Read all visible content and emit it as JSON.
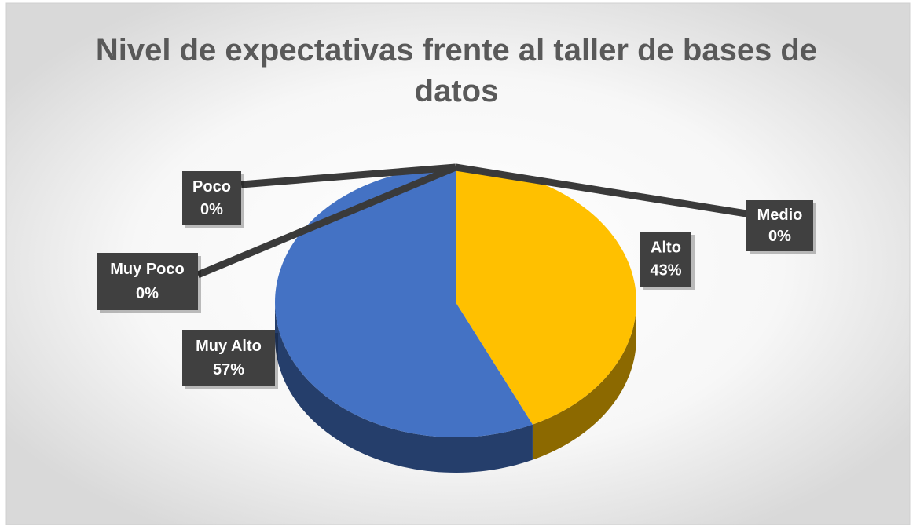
{
  "chart_data": {
    "type": "pie",
    "title": "Nivel de expectativas frente al taller de bases de datos",
    "categories": [
      "Muy Poco",
      "Poco",
      "Medio",
      "Alto",
      "Muy Alto"
    ],
    "values": [
      0,
      0,
      0,
      43,
      57
    ],
    "value_labels": [
      "0%",
      "0%",
      "0%",
      "43%",
      "57%"
    ],
    "colors": [
      null,
      null,
      null,
      "#ffc000",
      "#4472c4"
    ]
  }
}
